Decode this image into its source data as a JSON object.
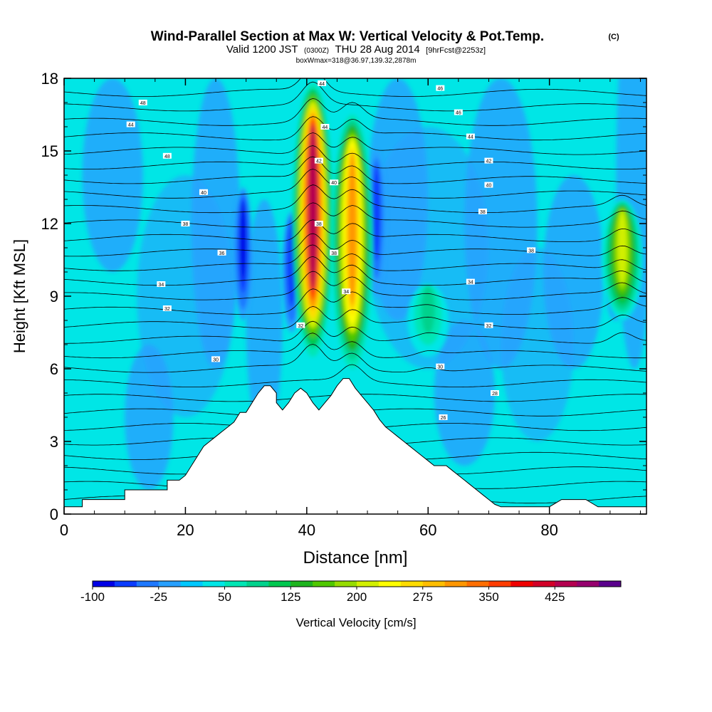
{
  "title": {
    "main": "Wind-Parallel Section at Max W: Vertical Velocity & Pot.Temp.",
    "copyright": "(C)",
    "valid_prefix": "Valid 1200 JST",
    "valid_zulu": "(0300Z)",
    "valid_date": "THU 28 Aug 2014",
    "forecast": "[9hrFcst@2253z]",
    "box_info": "boxWmax=318@36.97,139.32,2878m"
  },
  "chart_data": {
    "type": "heatmap",
    "xlabel": "Distance [nm]",
    "ylabel": "Height [Kft MSL]",
    "xlim": [
      0,
      96
    ],
    "ylim": [
      0,
      18
    ],
    "x_ticks": [
      0,
      20,
      40,
      60,
      80
    ],
    "y_ticks": [
      0,
      3,
      6,
      9,
      12,
      15,
      18
    ],
    "colorbar": {
      "label": "Vertical Velocity [cm/s]",
      "tick_labels": [
        "-100",
        "-25",
        "50",
        "125",
        "200",
        "275",
        "350",
        "425"
      ],
      "tick_values": [
        -100,
        -25,
        50,
        125,
        200,
        275,
        350,
        425
      ],
      "range": [
        -100,
        500
      ],
      "colors": [
        "#0000e6",
        "#0a3cff",
        "#1e78ff",
        "#28a0ff",
        "#00c8ff",
        "#00e6e6",
        "#00e6b4",
        "#00d28c",
        "#00c850",
        "#1eb41e",
        "#50c800",
        "#96dc00",
        "#d2f000",
        "#ffff00",
        "#ffdc00",
        "#ffbe00",
        "#ff9600",
        "#ff6e00",
        "#ff3c00",
        "#f00000",
        "#d20028",
        "#b40050",
        "#96006e",
        "#5a008c"
      ]
    },
    "terrain_profile": {
      "x": [
        0,
        3,
        3,
        5,
        10,
        10,
        12,
        17,
        17,
        19,
        20,
        21,
        22,
        23,
        24,
        25,
        26,
        27,
        28,
        29,
        30,
        31,
        32,
        33,
        34,
        35,
        35,
        36,
        37,
        38,
        39,
        40,
        41,
        42,
        43,
        44,
        45,
        46,
        47,
        48,
        49,
        50,
        51,
        52,
        53,
        54,
        55,
        56,
        57,
        58,
        59,
        60,
        61,
        62,
        63,
        64,
        65,
        66,
        67,
        68,
        69,
        70,
        71,
        72,
        73,
        78,
        80,
        82,
        84,
        86,
        88,
        90,
        92,
        94,
        96
      ],
      "h": [
        0.3,
        0.3,
        0.6,
        0.6,
        0.6,
        1.0,
        1.0,
        1.0,
        1.4,
        1.4,
        1.6,
        2.0,
        2.4,
        2.8,
        3.0,
        3.2,
        3.4,
        3.6,
        3.8,
        4.2,
        4.2,
        4.6,
        5.0,
        5.3,
        5.3,
        5.0,
        4.6,
        4.3,
        4.6,
        5.0,
        5.2,
        5.0,
        4.6,
        4.3,
        4.6,
        4.9,
        5.3,
        5.6,
        5.6,
        5.2,
        4.9,
        4.6,
        4.3,
        3.9,
        3.6,
        3.4,
        3.2,
        3.0,
        2.8,
        2.6,
        2.4,
        2.2,
        2.0,
        2.0,
        2.0,
        1.8,
        1.6,
        1.4,
        1.2,
        1.0,
        0.8,
        0.6,
        0.4,
        0.3,
        0.3,
        0.3,
        0.3,
        0.6,
        0.6,
        0.6,
        0.3,
        0.3,
        0.3,
        0.3,
        0.3
      ]
    },
    "updraft_cores": [
      {
        "x": 41,
        "z_top": 17.8,
        "z_bottom": 6.5,
        "w_max": 425
      },
      {
        "x": 47.5,
        "z_top": 16.5,
        "z_bottom": 6.0,
        "w_max": 310
      },
      {
        "x": 92,
        "z_top": 13.0,
        "z_bottom": 8.0,
        "w_max": 200
      },
      {
        "x": 60,
        "z_top": 9.5,
        "z_bottom": 6.5,
        "w_max": 90
      }
    ],
    "downdraft_cores": [
      {
        "x": 29.5,
        "z_top": 13.5,
        "z_bottom": 8.0,
        "w_min": -80
      },
      {
        "x": 37.5,
        "z_top": 12.5,
        "z_bottom": 7.5,
        "w_min": -70
      },
      {
        "x": 51.5,
        "z_top": 15.0,
        "z_bottom": 9.0,
        "w_min": -60
      },
      {
        "x": 91,
        "z_top": 10.0,
        "z_bottom": 8.0,
        "w_min": -70
      }
    ],
    "theta_contour_labels": [
      {
        "label": "48",
        "x": 13,
        "z": 17.0
      },
      {
        "label": "44",
        "x": 11,
        "z": 16.1
      },
      {
        "label": "48",
        "x": 17,
        "z": 14.8
      },
      {
        "label": "40",
        "x": 23,
        "z": 13.3
      },
      {
        "label": "38",
        "x": 20,
        "z": 12.0
      },
      {
        "label": "36",
        "x": 26,
        "z": 10.8
      },
      {
        "label": "34",
        "x": 16,
        "z": 9.5
      },
      {
        "label": "32",
        "x": 17,
        "z": 8.5
      },
      {
        "label": "30",
        "x": 25,
        "z": 6.4
      },
      {
        "label": "44",
        "x": 42.5,
        "z": 17.8
      },
      {
        "label": "44",
        "x": 43,
        "z": 16.0
      },
      {
        "label": "42",
        "x": 42,
        "z": 14.6
      },
      {
        "label": "40",
        "x": 44.5,
        "z": 13.7
      },
      {
        "label": "38",
        "x": 42,
        "z": 12.0
      },
      {
        "label": "38",
        "x": 44.5,
        "z": 10.8
      },
      {
        "label": "34",
        "x": 46.5,
        "z": 9.2
      },
      {
        "label": "32",
        "x": 39,
        "z": 7.8
      },
      {
        "label": "46",
        "x": 62,
        "z": 17.6
      },
      {
        "label": "46",
        "x": 65,
        "z": 16.6
      },
      {
        "label": "44",
        "x": 67,
        "z": 15.6
      },
      {
        "label": "42",
        "x": 70,
        "z": 14.6
      },
      {
        "label": "40",
        "x": 70,
        "z": 13.6
      },
      {
        "label": "38",
        "x": 69,
        "z": 12.5
      },
      {
        "label": "38",
        "x": 77,
        "z": 10.9
      },
      {
        "label": "34",
        "x": 67,
        "z": 9.6
      },
      {
        "label": "32",
        "x": 70,
        "z": 7.8
      },
      {
        "label": "30",
        "x": 62,
        "z": 6.1
      },
      {
        "label": "28",
        "x": 71,
        "z": 5.0
      },
      {
        "label": "26",
        "x": 62.5,
        "z": 4.0
      }
    ]
  }
}
